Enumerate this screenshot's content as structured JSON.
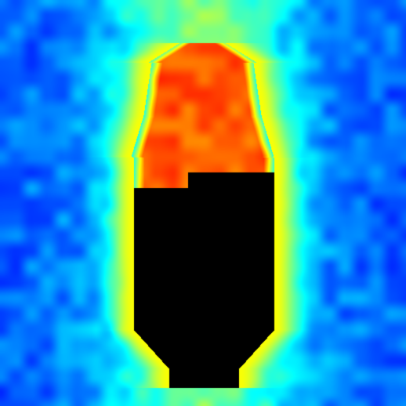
{
  "image": {
    "kind": "thermal-heatmap",
    "subject": "human-figure",
    "colormap": [
      "#00007f",
      "#0000ff",
      "#00ffff",
      "#ffff00",
      "#ff7f00",
      "#ff0000",
      "#7f0000"
    ]
  }
}
